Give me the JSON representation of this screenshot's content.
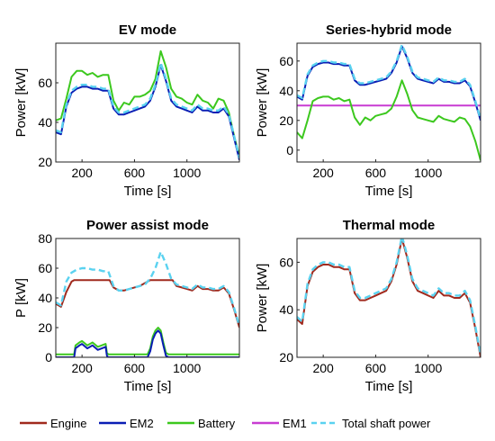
{
  "colors": {
    "Engine": "#a0291d",
    "EM2": "#0a1eb4",
    "Battery": "#3cc81e",
    "EM1": "#c83cd2",
    "Total shaft power": "#5ad2f0"
  },
  "legend": {
    "placement": "bottom",
    "entries": [
      "Engine",
      "EM2",
      "Battery",
      "EM1",
      "Total shaft power"
    ]
  },
  "chart_data": [
    {
      "type": "line",
      "title": "EV mode",
      "xlabel": "Time [s]",
      "ylabel": "Power [kW]",
      "xlim": [
        0,
        1400
      ],
      "ylim": [
        20,
        80
      ],
      "xticks": [
        "200",
        "600",
        "1000"
      ],
      "yticks": [
        "20",
        "40",
        "60"
      ],
      "series": [
        {
          "name": "Battery",
          "style": "solid",
          "x": [
            0,
            40,
            80,
            120,
            160,
            200,
            240,
            280,
            320,
            360,
            400,
            440,
            480,
            520,
            560,
            600,
            640,
            680,
            720,
            760,
            800,
            840,
            880,
            920,
            960,
            1000,
            1040,
            1080,
            1120,
            1160,
            1200,
            1240,
            1280,
            1320,
            1360,
            1400
          ],
          "y": [
            41,
            42,
            52,
            63,
            66,
            66,
            64,
            65,
            63,
            64,
            64,
            51,
            46,
            50,
            49,
            53,
            53,
            54,
            56,
            62,
            76,
            68,
            57,
            53,
            52,
            50,
            49,
            54,
            51,
            50,
            47,
            52,
            51,
            45,
            33,
            23
          ]
        },
        {
          "name": "EM2",
          "style": "solid",
          "x": [
            0,
            40,
            80,
            120,
            160,
            200,
            240,
            280,
            320,
            360,
            400,
            440,
            480,
            520,
            560,
            600,
            640,
            680,
            720,
            760,
            800,
            840,
            880,
            920,
            960,
            1000,
            1040,
            1080,
            1120,
            1160,
            1200,
            1240,
            1280,
            1320,
            1360,
            1400
          ],
          "y": [
            35,
            34,
            48,
            55,
            57,
            58,
            58,
            57,
            57,
            56,
            56,
            47,
            44,
            44,
            45,
            46,
            47,
            48,
            51,
            58,
            69,
            61,
            51,
            48,
            47,
            46,
            45,
            48,
            46,
            46,
            45,
            45,
            47,
            43,
            32,
            21
          ]
        },
        {
          "name": "Total shaft power",
          "style": "dashed",
          "x": [
            0,
            40,
            80,
            120,
            160,
            200,
            240,
            280,
            320,
            360,
            400,
            440,
            480,
            520,
            560,
            600,
            640,
            680,
            720,
            760,
            800,
            840,
            880,
            920,
            960,
            1000,
            1040,
            1080,
            1120,
            1160,
            1200,
            1240,
            1280,
            1320,
            1360,
            1400
          ],
          "y": [
            36,
            35,
            49,
            56,
            58,
            59,
            59,
            58,
            58,
            57,
            57,
            48,
            45,
            45,
            46,
            47,
            48,
            49,
            52,
            59,
            70,
            62,
            52,
            49,
            48,
            47,
            46,
            49,
            47,
            47,
            46,
            46,
            48,
            44,
            33,
            22
          ]
        }
      ]
    },
    {
      "type": "line",
      "title": "Series-hybrid mode",
      "xlabel": "Time [s]",
      "ylabel": "Power [kW]",
      "xlim": [
        0,
        1400
      ],
      "ylim": [
        -8,
        72
      ],
      "xticks": [
        "200",
        "600",
        "1000"
      ],
      "yticks": [
        "0",
        "20",
        "40",
        "60"
      ],
      "series": [
        {
          "name": "EM1",
          "style": "solid",
          "x": [
            0,
            1400
          ],
          "y": [
            30,
            30
          ]
        },
        {
          "name": "Battery",
          "style": "solid",
          "x": [
            0,
            40,
            80,
            120,
            160,
            200,
            240,
            280,
            320,
            360,
            400,
            440,
            480,
            520,
            560,
            600,
            640,
            680,
            720,
            760,
            800,
            840,
            880,
            920,
            960,
            1000,
            1040,
            1080,
            1120,
            1160,
            1200,
            1240,
            1280,
            1320,
            1360,
            1400
          ],
          "y": [
            12,
            8,
            20,
            33,
            35,
            36,
            36,
            34,
            35,
            33,
            34,
            22,
            17,
            22,
            20,
            23,
            24,
            25,
            28,
            36,
            47,
            38,
            27,
            22,
            21,
            20,
            19,
            23,
            21,
            20,
            19,
            22,
            21,
            16,
            6,
            -7
          ]
        },
        {
          "name": "EM2",
          "style": "solid",
          "x": [
            0,
            40,
            80,
            120,
            160,
            200,
            240,
            280,
            320,
            360,
            400,
            440,
            480,
            520,
            560,
            600,
            640,
            680,
            720,
            760,
            800,
            840,
            880,
            920,
            960,
            1000,
            1040,
            1080,
            1120,
            1160,
            1200,
            1240,
            1280,
            1320,
            1360,
            1400
          ],
          "y": [
            36,
            34,
            50,
            56,
            58,
            59,
            59,
            58,
            58,
            57,
            57,
            47,
            44,
            44,
            45,
            46,
            47,
            48,
            52,
            59,
            70,
            62,
            52,
            48,
            47,
            46,
            45,
            48,
            46,
            46,
            45,
            45,
            47,
            43,
            32,
            20
          ]
        },
        {
          "name": "Total shaft power",
          "style": "dashed",
          "x": [
            0,
            40,
            80,
            120,
            160,
            200,
            240,
            280,
            320,
            360,
            400,
            440,
            480,
            520,
            560,
            600,
            640,
            680,
            720,
            760,
            800,
            840,
            880,
            920,
            960,
            1000,
            1040,
            1080,
            1120,
            1160,
            1200,
            1240,
            1280,
            1320,
            1360,
            1400
          ],
          "y": [
            37,
            35,
            51,
            57,
            59,
            60,
            60,
            59,
            59,
            58,
            58,
            48,
            45,
            45,
            46,
            47,
            48,
            49,
            53,
            60,
            71,
            63,
            53,
            49,
            48,
            47,
            46,
            49,
            47,
            47,
            46,
            46,
            48,
            44,
            33,
            21
          ]
        }
      ]
    },
    {
      "type": "line",
      "title": "Power assist mode",
      "xlabel": "Time [s]",
      "ylabel": "P [kW]",
      "xlim": [
        0,
        1400
      ],
      "ylim": [
        0,
        80
      ],
      "xticks": [
        "200",
        "600",
        "1000"
      ],
      "yticks": [
        "0",
        "20",
        "40",
        "60",
        "80"
      ],
      "series": [
        {
          "name": "Engine",
          "style": "solid",
          "x": [
            0,
            40,
            80,
            120,
            140,
            400,
            410,
            440,
            480,
            520,
            560,
            600,
            640,
            680,
            700,
            720,
            880,
            890,
            920,
            960,
            1000,
            1040,
            1080,
            1120,
            1160,
            1200,
            1240,
            1280,
            1320,
            1360,
            1400
          ],
          "y": [
            36,
            34,
            44,
            51,
            52,
            52,
            52,
            47,
            45,
            45,
            46,
            47,
            48,
            50,
            51,
            52,
            52,
            52,
            48,
            47,
            46,
            45,
            48,
            46,
            46,
            45,
            45,
            47,
            43,
            32,
            20
          ]
        },
        {
          "name": "Battery",
          "style": "solid",
          "x": [
            0,
            140,
            150,
            180,
            200,
            240,
            280,
            320,
            380,
            390,
            400,
            410,
            700,
            720,
            740,
            760,
            780,
            800,
            820,
            840,
            860,
            880,
            890,
            1400
          ],
          "y": [
            2,
            2,
            8,
            10,
            11,
            8,
            10,
            7,
            9,
            3,
            2,
            2,
            2,
            6,
            14,
            18,
            20,
            18,
            10,
            3,
            2,
            2,
            2,
            2
          ]
        },
        {
          "name": "EM2",
          "style": "solid",
          "x": [
            0,
            140,
            150,
            180,
            200,
            240,
            280,
            320,
            380,
            390,
            400,
            410,
            700,
            720,
            740,
            760,
            780,
            800,
            820,
            840,
            860,
            880,
            890,
            1400
          ],
          "y": [
            0,
            0,
            6,
            8,
            9,
            6,
            8,
            5,
            7,
            1,
            0,
            0,
            0,
            4,
            12,
            16,
            18,
            16,
            8,
            1,
            0,
            0,
            0,
            0
          ]
        },
        {
          "name": "Total shaft power",
          "style": "dashed",
          "x": [
            0,
            40,
            80,
            120,
            160,
            200,
            240,
            280,
            320,
            360,
            400,
            440,
            480,
            520,
            560,
            600,
            640,
            680,
            720,
            760,
            800,
            840,
            880,
            920,
            960,
            1000,
            1040,
            1080,
            1120,
            1160,
            1200,
            1240,
            1280,
            1320,
            1360,
            1400
          ],
          "y": [
            37,
            35,
            51,
            57,
            59,
            60,
            60,
            59,
            59,
            58,
            58,
            48,
            45,
            45,
            46,
            47,
            48,
            49,
            53,
            60,
            71,
            63,
            53,
            49,
            48,
            47,
            46,
            49,
            47,
            47,
            46,
            46,
            48,
            44,
            33,
            21
          ]
        }
      ]
    },
    {
      "type": "line",
      "title": "Thermal mode",
      "xlabel": "Time [s]",
      "ylabel": "Power [kW]",
      "xlim": [
        0,
        1400
      ],
      "ylim": [
        20,
        70
      ],
      "xticks": [
        "200",
        "600",
        "1000"
      ],
      "yticks": [
        "20",
        "40",
        "60"
      ],
      "series": [
        {
          "name": "Engine",
          "style": "solid",
          "x": [
            0,
            40,
            80,
            120,
            160,
            200,
            240,
            280,
            320,
            360,
            400,
            440,
            480,
            520,
            560,
            600,
            640,
            680,
            720,
            760,
            800,
            840,
            880,
            920,
            960,
            1000,
            1040,
            1080,
            1120,
            1160,
            1200,
            1240,
            1280,
            1320,
            1360,
            1400
          ],
          "y": [
            36,
            34,
            50,
            56,
            58,
            59,
            59,
            58,
            58,
            57,
            57,
            47,
            44,
            44,
            45,
            46,
            47,
            48,
            52,
            59,
            70,
            62,
            52,
            48,
            47,
            46,
            45,
            48,
            46,
            46,
            45,
            45,
            47,
            43,
            32,
            20
          ]
        },
        {
          "name": "Total shaft power",
          "style": "dashed",
          "x": [
            0,
            40,
            80,
            120,
            160,
            200,
            240,
            280,
            320,
            360,
            400,
            440,
            480,
            520,
            560,
            600,
            640,
            680,
            720,
            760,
            800,
            840,
            880,
            920,
            960,
            1000,
            1040,
            1080,
            1120,
            1160,
            1200,
            1240,
            1280,
            1320,
            1360,
            1400
          ],
          "y": [
            37,
            35,
            51,
            57,
            59,
            60,
            60,
            59,
            59,
            58,
            58,
            48,
            45,
            45,
            46,
            47,
            48,
            49,
            53,
            60,
            71,
            63,
            53,
            49,
            48,
            47,
            46,
            49,
            47,
            47,
            46,
            46,
            48,
            44,
            33,
            21
          ]
        }
      ]
    }
  ]
}
